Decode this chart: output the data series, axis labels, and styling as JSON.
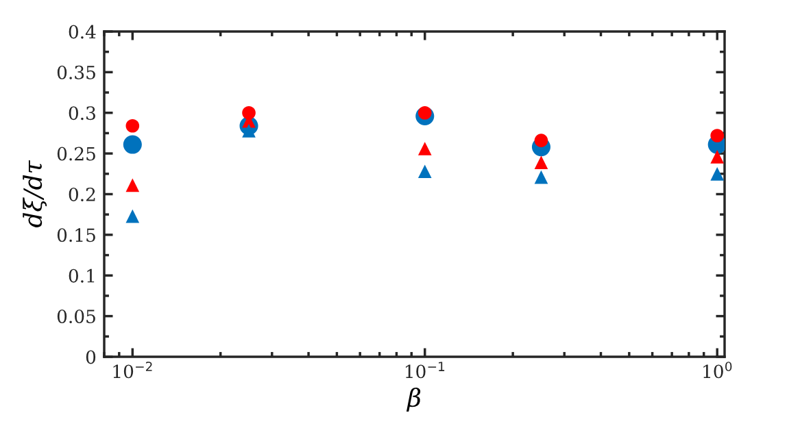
{
  "chart_data": {
    "type": "scatter",
    "xlabel": "β",
    "ylabel": "dξ/dτ",
    "log": "x",
    "grid": false,
    "legend": false,
    "xlim": [
      0.008,
      1.06
    ],
    "xticks": [
      {
        "value": 0.01,
        "label": "10$^{−2}$"
      },
      {
        "value": 0.1,
        "label": "10$^{−1}$"
      },
      {
        "value": 1,
        "label": "10$^{0}$"
      }
    ],
    "ylim": [
      0,
      0.4
    ],
    "yticks": [
      0,
      0.05,
      0.1,
      0.15,
      0.2,
      0.25,
      0.3,
      0.35,
      0.4
    ],
    "x": [
      0.01,
      0.025,
      0.1,
      0.25,
      1
    ],
    "series": [
      {
        "color": "#0072bd",
        "marker": "circle",
        "values": [
          0.261,
          0.284,
          0.296,
          0.258,
          0.261
        ]
      },
      {
        "color": "#ff0000",
        "marker": "circle",
        "values": [
          0.284,
          0.3,
          0.3,
          0.266,
          0.272
        ]
      },
      {
        "color": "#ff0000",
        "marker": "triangle",
        "values": [
          0.211,
          0.29,
          0.256,
          0.239,
          0.246
        ]
      },
      {
        "color": "#0072bd",
        "marker": "triangle",
        "values": [
          0.173,
          0.278,
          0.228,
          0.221,
          0.225
        ]
      }
    ]
  }
}
